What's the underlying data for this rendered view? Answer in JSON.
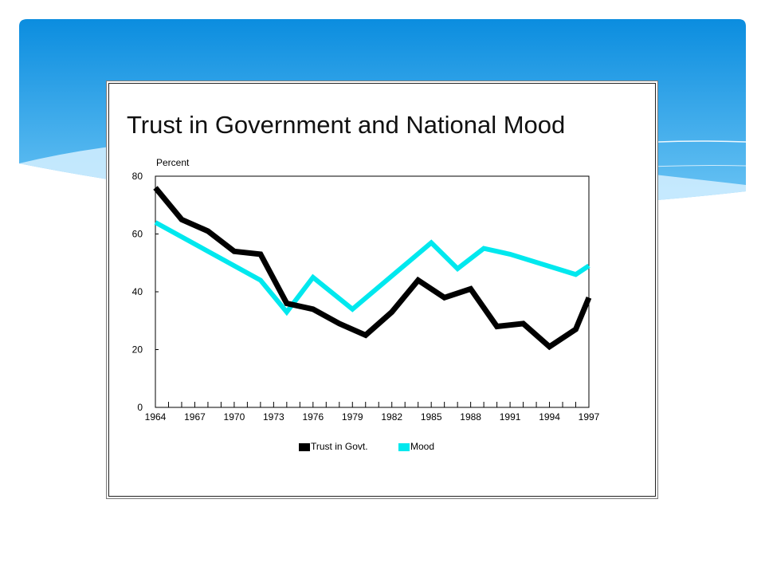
{
  "slide": {
    "colors": {
      "header_top": "#0b8ddf",
      "header_bottom": "#6ec6f5",
      "swoosh": "#d6f0ff"
    }
  },
  "chart_data": {
    "type": "line",
    "title": "Trust in Government and National Mood",
    "ylabel": "Percent",
    "xlabel": "",
    "ylim": [
      0,
      80
    ],
    "xlim": [
      1964,
      1997
    ],
    "y_ticks": [
      "0",
      "20",
      "40",
      "60",
      "80"
    ],
    "x_ticks": [
      "1964",
      "1967",
      "1970",
      "1973",
      "1976",
      "1979",
      "1982",
      "1985",
      "1988",
      "1991",
      "1994",
      "1997"
    ],
    "grid": false,
    "legend_position": "bottom",
    "series": [
      {
        "name": "Trust in Govt.",
        "color": "#000000",
        "points": [
          [
            1964,
            76
          ],
          [
            1966,
            65
          ],
          [
            1968,
            61
          ],
          [
            1970,
            54
          ],
          [
            1972,
            53
          ],
          [
            1974,
            36
          ],
          [
            1976,
            34
          ],
          [
            1978,
            29
          ],
          [
            1980,
            25
          ],
          [
            1982,
            33
          ],
          [
            1984,
            44
          ],
          [
            1986,
            38
          ],
          [
            1988,
            41
          ],
          [
            1990,
            28
          ],
          [
            1992,
            29
          ],
          [
            1994,
            21
          ],
          [
            1996,
            27
          ],
          [
            1997,
            38
          ]
        ]
      },
      {
        "name": "Mood",
        "color": "#00e8ee",
        "points": [
          [
            1964,
            64
          ],
          [
            1972,
            44
          ],
          [
            1974,
            33
          ],
          [
            1976,
            45
          ],
          [
            1979,
            34
          ],
          [
            1985,
            57
          ],
          [
            1987,
            48
          ],
          [
            1989,
            55
          ],
          [
            1991,
            53
          ],
          [
            1996,
            46
          ],
          [
            1997,
            49
          ]
        ]
      }
    ]
  }
}
